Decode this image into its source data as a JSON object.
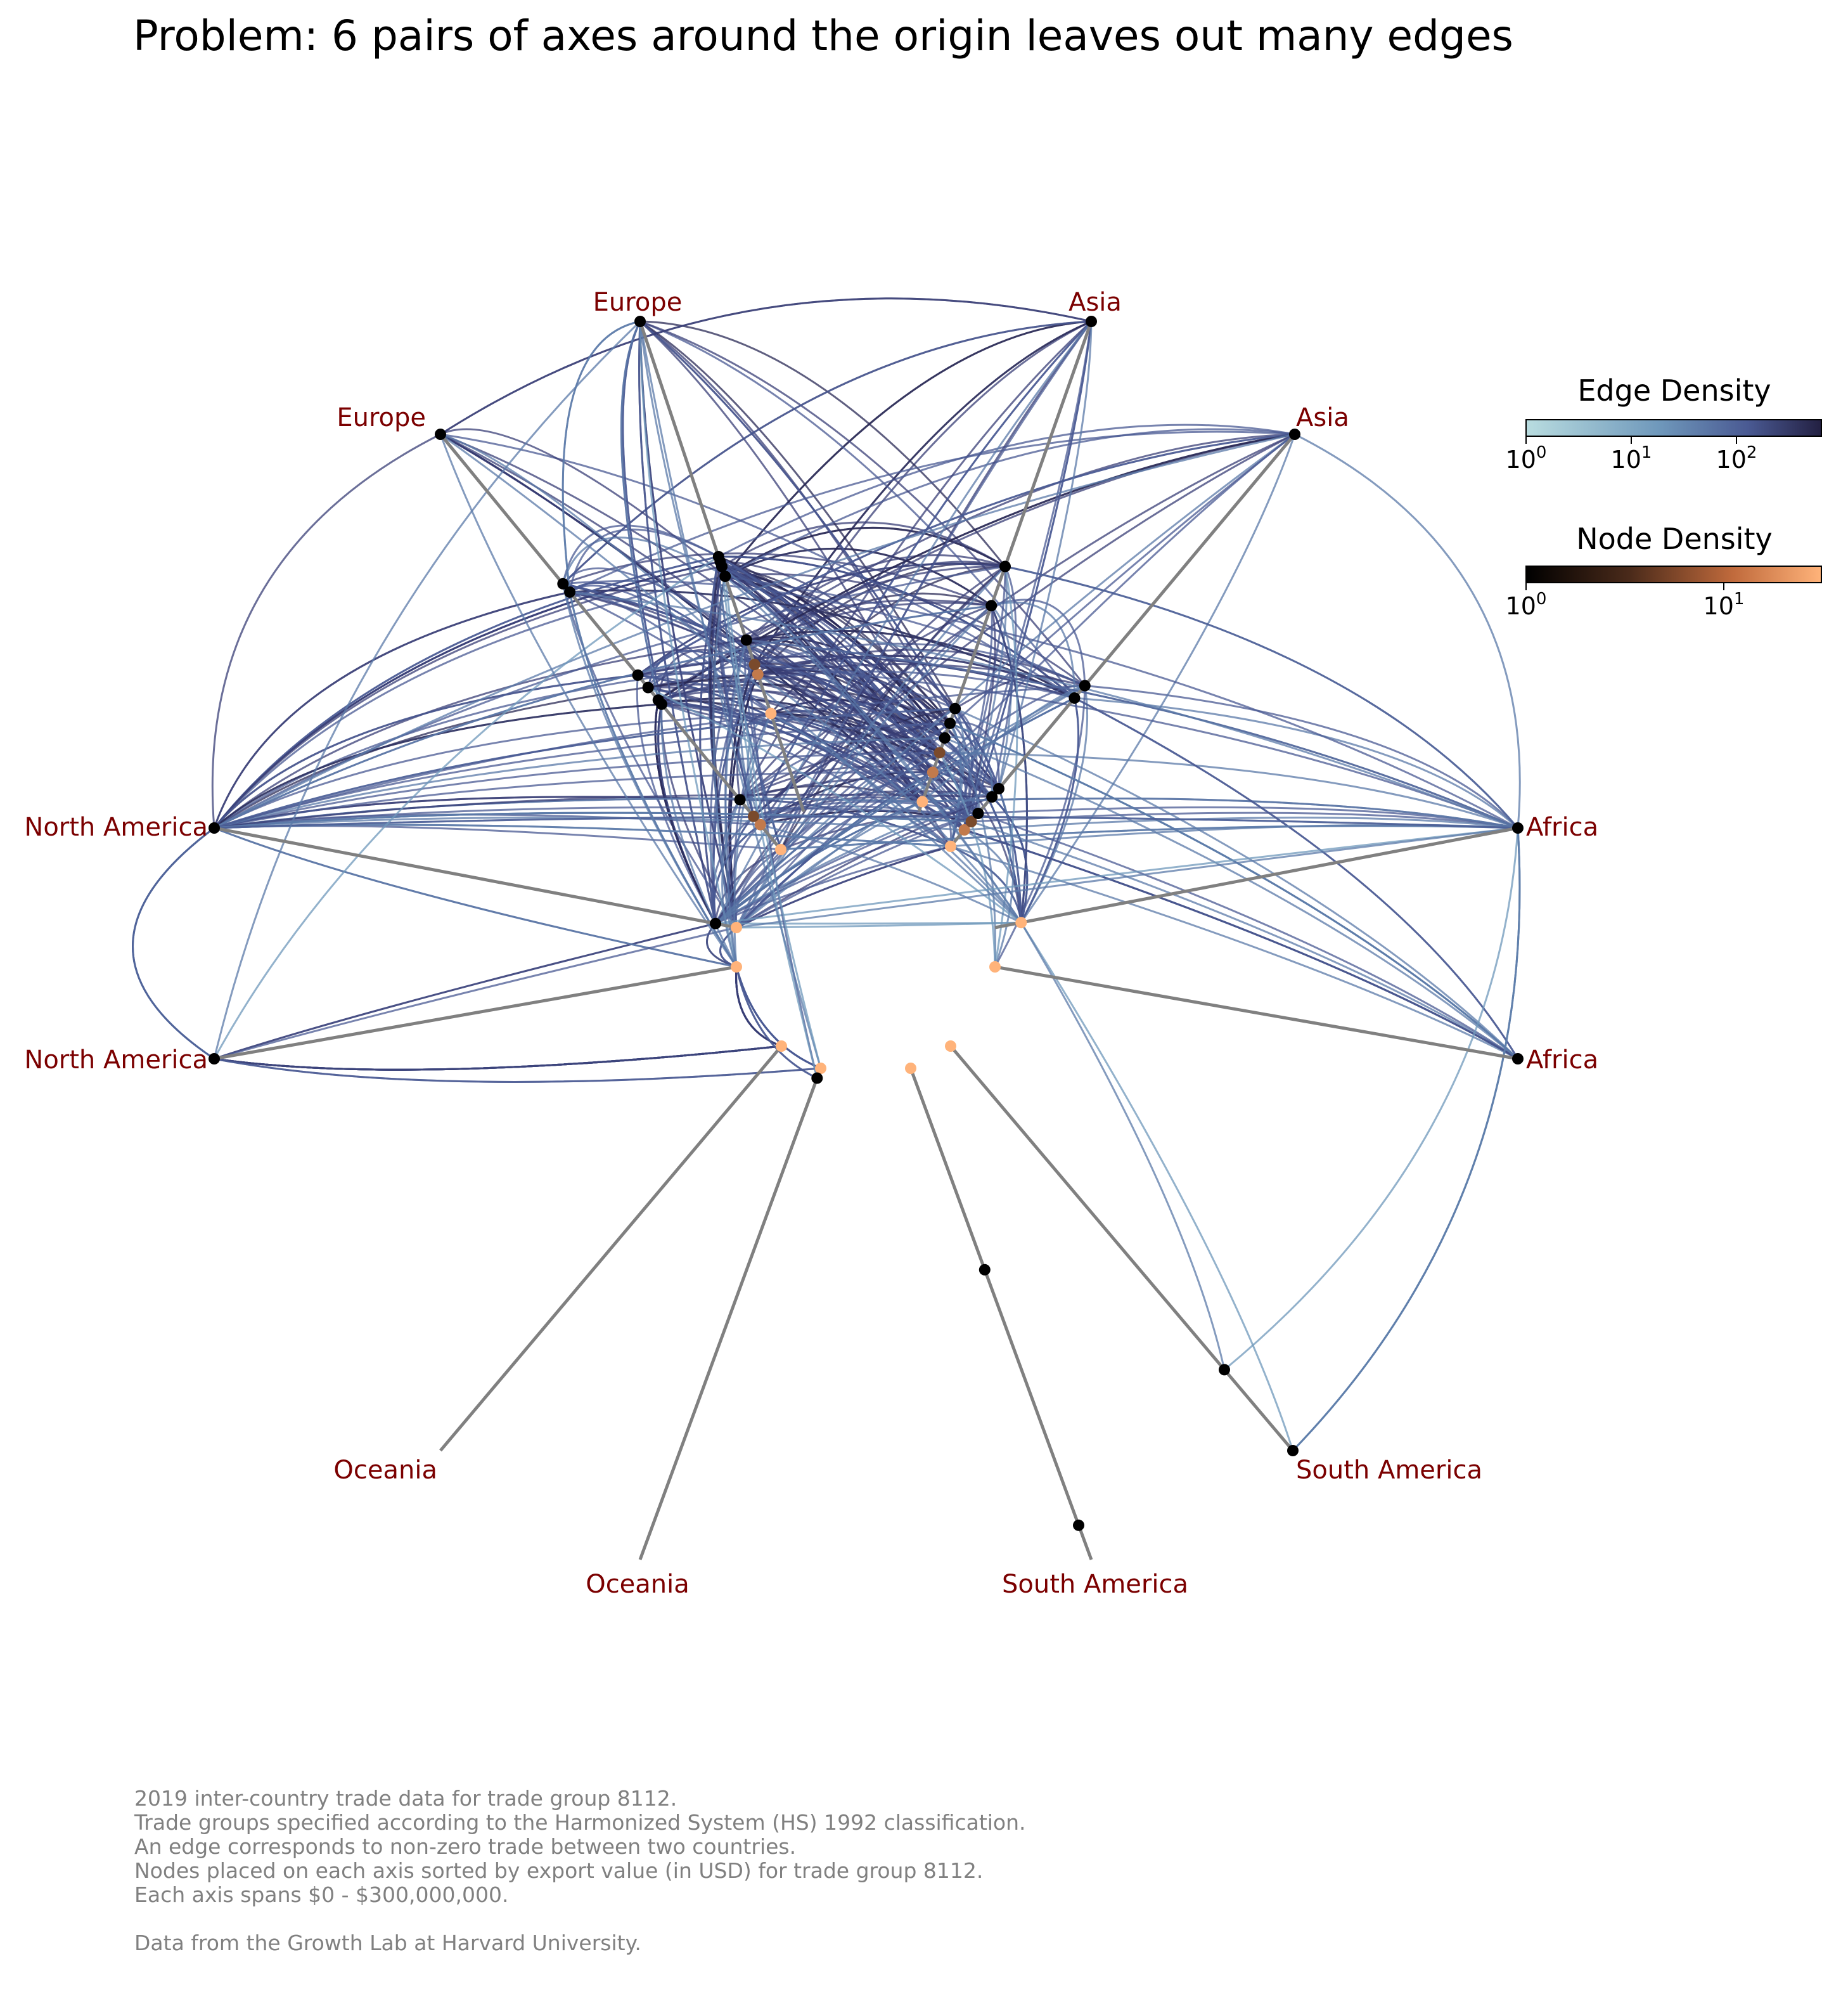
{
  "title": "Problem: 6 pairs of axes around the origin leaves out many edges",
  "caption": [
    "2019 inter-country trade data for trade group 8112.",
    "Trade groups specified according to the Harmonized System (HS) 1992 classification.",
    "An edge corresponds to non-zero trade between two countries.",
    "Nodes placed on each axis sorted by export value (in USD) for trade group 8112.",
    "Each axis spans $0 - $300,000,000."
  ],
  "source": "Data from the Growth Lab at Harvard University.",
  "colors": {
    "axis_line": "#808080",
    "axis_label": "#7b0000",
    "edge_low": "#b9dde0",
    "edge_high": "#232042",
    "node_low": "#000000",
    "node_high": "#ffb37a",
    "caption": "#808080"
  },
  "chart_data": {
    "type": "hive",
    "axis_span": [
      0,
      300000000
    ],
    "axes": [
      {
        "label": "Europe"
      },
      {
        "label": "Europe"
      },
      {
        "label": "Asia"
      },
      {
        "label": "Asia"
      },
      {
        "label": "Africa"
      },
      {
        "label": "Africa"
      },
      {
        "label": "South America"
      },
      {
        "label": "South America"
      },
      {
        "label": "Oceania"
      },
      {
        "label": "Oceania"
      },
      {
        "label": "North America"
      },
      {
        "label": "North America"
      }
    ],
    "colorbars": [
      {
        "title": "Edge Density",
        "scale": "log",
        "ticks": [
          {
            "base": "10",
            "exp": "0"
          },
          {
            "base": "10",
            "exp": "1"
          },
          {
            "base": "10",
            "exp": "2"
          }
        ]
      },
      {
        "title": "Node Density",
        "scale": "log",
        "ticks": [
          {
            "base": "10",
            "exp": "0"
          },
          {
            "base": "10",
            "exp": "1"
          }
        ]
      }
    ]
  }
}
